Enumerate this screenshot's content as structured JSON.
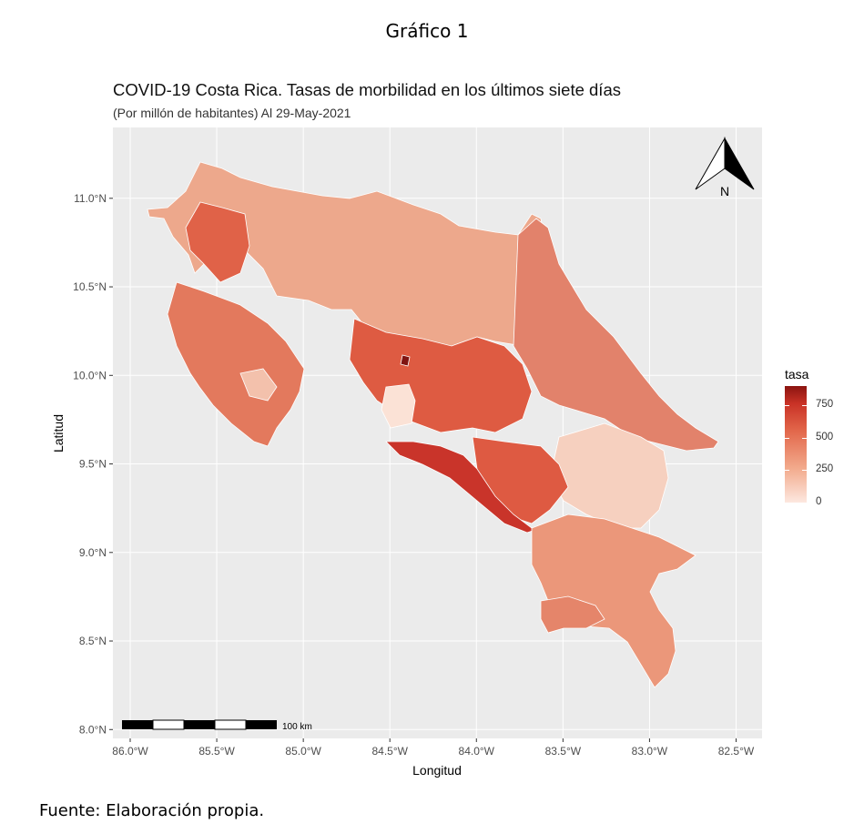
{
  "figure_caption": "Gráfico 1",
  "title": "COVID-19 Costa Rica. Tasas de morbilidad en los últimos siete días",
  "subtitle": "(Por millón de habitantes) Al 29-May-2021",
  "source_note": "Fuente: Elaboración propia.",
  "north_arrow_label": "N",
  "scale_bar_label": "100 km",
  "colors": {
    "panel_background": "#ebebeb",
    "gridline": "#ffffff",
    "low": "#fde8e0",
    "high": "#8b1410"
  },
  "chart_data": {
    "type": "choropleth map",
    "xlabel": "Longitud",
    "ylabel": "Latitud",
    "x_ticks": [
      "86.0°W",
      "85.5°W",
      "85.0°W",
      "84.5°W",
      "84.0°W",
      "83.5°W",
      "83.0°W",
      "82.5°W"
    ],
    "x_tick_values": [
      -86.0,
      -85.5,
      -85.0,
      -84.5,
      -84.0,
      -83.5,
      -83.0,
      -82.5
    ],
    "y_ticks": [
      "11.0°N",
      "10.5°N",
      "10.0°N",
      "9.5°N",
      "9.0°N",
      "8.5°N",
      "8.0°N"
    ],
    "y_tick_values": [
      11.0,
      10.5,
      10.0,
      9.5,
      9.0,
      8.5,
      8.0
    ],
    "xlim": [
      -86.1,
      -82.35
    ],
    "ylim": [
      7.95,
      11.4
    ],
    "legend": {
      "title": "tasa",
      "ticks": [
        750,
        500,
        250,
        0
      ],
      "tick_labels": [
        "750",
        "500",
        "250",
        "0"
      ],
      "range": [
        0,
        900
      ],
      "position": "right"
    },
    "grid": true
  }
}
